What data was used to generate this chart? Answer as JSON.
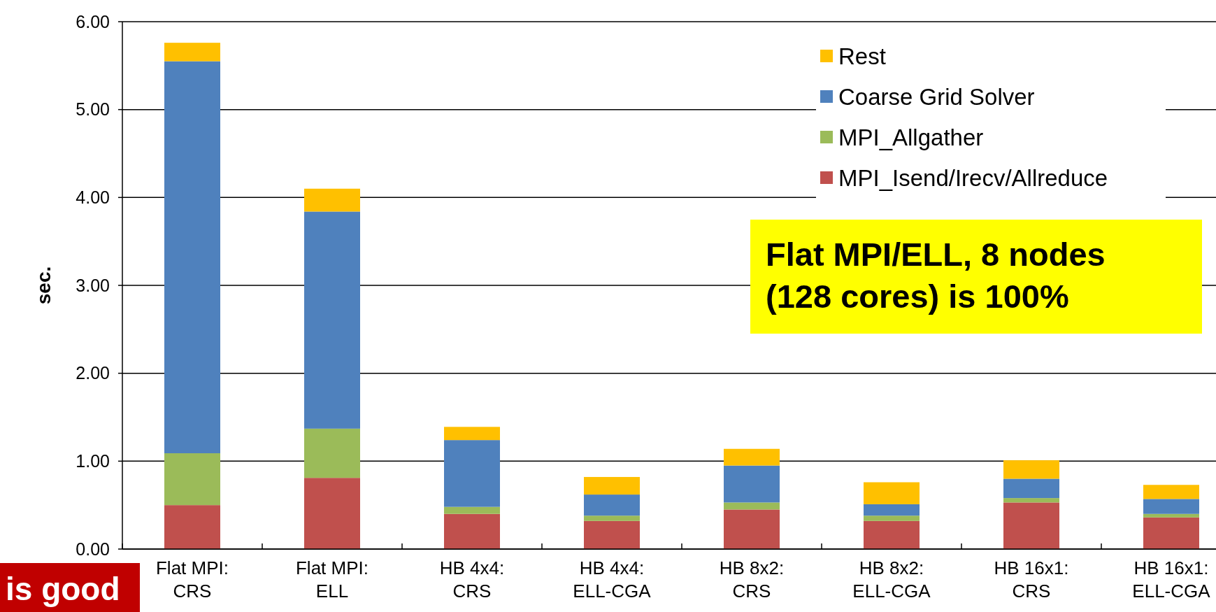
{
  "chart_data": {
    "type": "bar",
    "stacked": true,
    "ylabel": "sec.",
    "categories": [
      "Flat MPI:\nCRS",
      "Flat MPI:\nELL",
      "HB 4x4:\nCRS",
      "HB 4x4:\nELL-CGA",
      "HB 8x2:\nCRS",
      "HB 8x2:\nELL-CGA",
      "HB 16x1:\nCRS",
      "HB 16x1:\nELL-CGA"
    ],
    "series": [
      {
        "name": "MPI_Isend/Irecv/Allreduce",
        "color": "#c0504d",
        "values": [
          0.5,
          0.81,
          0.4,
          0.32,
          0.45,
          0.32,
          0.53,
          0.36
        ]
      },
      {
        "name": "MPI_Allgather",
        "color": "#9bbb59",
        "values": [
          0.59,
          0.56,
          0.08,
          0.06,
          0.08,
          0.06,
          0.05,
          0.04
        ]
      },
      {
        "name": "Coarse Grid Solver",
        "color": "#4f81bd",
        "values": [
          4.46,
          2.47,
          0.76,
          0.24,
          0.42,
          0.13,
          0.22,
          0.17
        ]
      },
      {
        "name": "Rest",
        "color": "#ffc000",
        "values": [
          0.21,
          0.26,
          0.15,
          0.2,
          0.19,
          0.25,
          0.21,
          0.16
        ]
      }
    ],
    "ylim": [
      0,
      6
    ],
    "yticks": [
      {
        "value": 0,
        "label": "0.00"
      },
      {
        "value": 1,
        "label": "1.00"
      },
      {
        "value": 2,
        "label": "2.00"
      },
      {
        "value": 3,
        "label": "3.00"
      },
      {
        "value": 4,
        "label": "4.00"
      },
      {
        "value": 5,
        "label": "5.00"
      },
      {
        "value": 6,
        "label": "6.00"
      }
    ],
    "grid": "y",
    "legend": "top right",
    "annotations": [
      "Flat MPI/ELL, 8 nodes\n(128 cores) is 100%",
      "is good"
    ]
  }
}
